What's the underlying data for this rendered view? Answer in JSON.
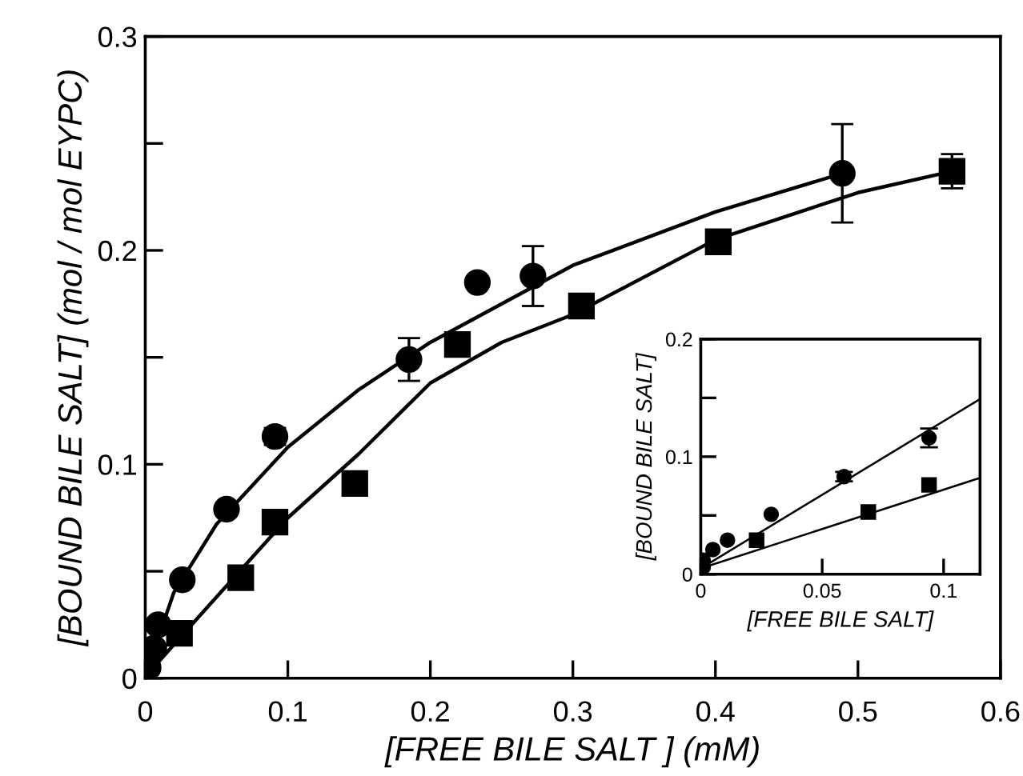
{
  "chart_data": [
    {
      "type": "scatter",
      "xlabel": "[FREE BILE SALT ] (mM)",
      "ylabel": "[BOUND BILE SALT] (mol / mol EYPC)",
      "xlim": [
        0,
        0.6
      ],
      "ylim": [
        0,
        0.3
      ],
      "xticks": [
        0,
        0.1,
        0.2,
        0.3,
        0.4,
        0.5,
        0.6
      ],
      "yticks": [
        0,
        {
          "value": 0.05,
          "label": null
        },
        0.1,
        {
          "value": 0.15,
          "label": null
        },
        0.2,
        {
          "value": 0.25,
          "label": null
        },
        0.3
      ],
      "grid": false,
      "legend": false,
      "series": [
        {
          "marker": "circle",
          "color": "#000000",
          "x": [
            0.002,
            0.006,
            0.009,
            0.026,
            0.057,
            0.091,
            0.185,
            0.233,
            0.272,
            0.489
          ],
          "values": [
            0.005,
            0.014,
            0.025,
            0.046,
            0.079,
            0.113,
            0.149,
            0.185,
            0.188,
            0.236
          ],
          "errors": [
            null,
            null,
            null,
            null,
            null,
            0.004,
            0.01,
            null,
            0.014,
            0.023
          ]
        },
        {
          "marker": "square",
          "color": "#000000",
          "x": [
            0.024,
            0.067,
            0.091,
            0.147,
            0.219,
            0.306,
            0.402,
            0.566
          ],
          "values": [
            0.021,
            0.047,
            0.073,
            0.091,
            0.156,
            0.174,
            0.204,
            0.237
          ],
          "errors": [
            null,
            null,
            null,
            null,
            null,
            null,
            null,
            0.008
          ]
        },
        {
          "type": "line",
          "marker": "none",
          "color": "#000000",
          "x": [
            0.002,
            0.02,
            0.05,
            0.1,
            0.15,
            0.2,
            0.3,
            0.4,
            0.489
          ],
          "values": [
            0.005,
            0.04,
            0.072,
            0.108,
            0.135,
            0.157,
            0.193,
            0.218,
            0.236
          ]
        },
        {
          "type": "line",
          "marker": "none",
          "color": "#000000",
          "x": [
            0.003,
            0.05,
            0.1,
            0.15,
            0.2,
            0.25,
            0.3,
            0.4,
            0.5,
            0.566
          ],
          "values": [
            0.003,
            0.038,
            0.075,
            0.105,
            0.138,
            0.157,
            0.17,
            0.205,
            0.227,
            0.237
          ]
        }
      ]
    },
    {
      "type": "scatter",
      "xlabel": "[FREE BILE SALT]",
      "ylabel": "[BOUND BILE SALT]",
      "xlim": [
        0,
        0.115
      ],
      "ylim": [
        0,
        0.2
      ],
      "xticks": [
        0,
        0.05,
        0.1
      ],
      "yticks": [
        0,
        {
          "value": 0.05,
          "label": null
        },
        0.1,
        {
          "value": 0.15,
          "label": null
        },
        0.2
      ],
      "grid": false,
      "legend": false,
      "series": [
        {
          "marker": "circle",
          "color": "#000000",
          "x": [
            0.001,
            0.001,
            0.005,
            0.011,
            0.029,
            0.059,
            0.094
          ],
          "values": [
            0.012,
            0.006,
            0.021,
            0.029,
            0.051,
            0.083,
            0.116
          ],
          "errors": [
            null,
            null,
            null,
            null,
            null,
            0.004,
            0.008
          ]
        },
        {
          "marker": "square",
          "color": "#000000",
          "x": [
            0.023,
            0.069,
            0.094
          ],
          "values": [
            0.029,
            0.053,
            0.076
          ]
        },
        {
          "type": "line",
          "marker": "none",
          "color": "#000000",
          "x": [
            0,
            0.115
          ],
          "values": [
            0.005,
            0.149
          ]
        },
        {
          "type": "line",
          "marker": "none",
          "color": "#000000",
          "x": [
            0,
            0.115
          ],
          "values": [
            0.005,
            0.082
          ]
        }
      ]
    }
  ]
}
